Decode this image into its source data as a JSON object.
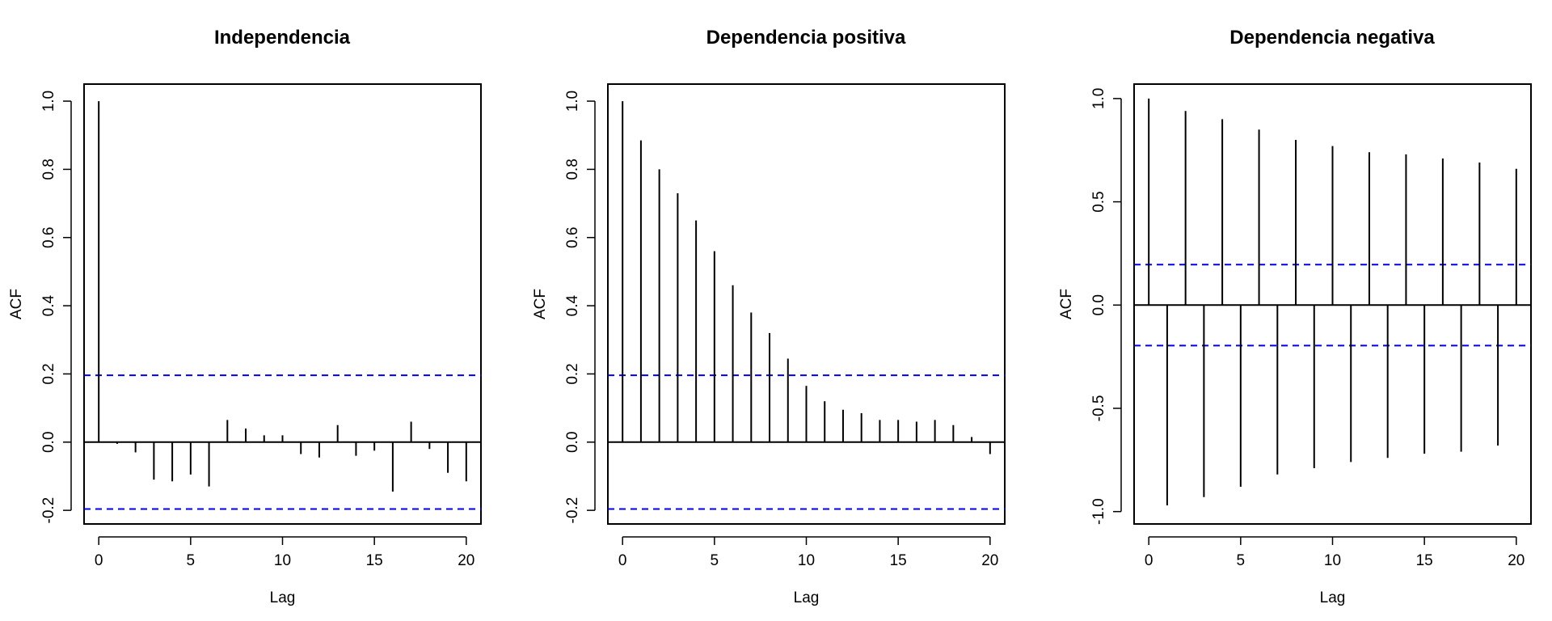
{
  "chart_data": [
    {
      "type": "bar",
      "title": "Independencia",
      "xlabel": "Lag",
      "ylabel": "ACF",
      "xlim": [
        -0.8,
        20.8
      ],
      "ylim": [
        -0.24,
        1.05
      ],
      "xticks": [
        0,
        5,
        10,
        15,
        20
      ],
      "xtick_labels": [
        "0",
        "5",
        "10",
        "15",
        "20"
      ],
      "yticks": [
        -0.2,
        0.0,
        0.2,
        0.4,
        0.6,
        0.8,
        1.0
      ],
      "ytick_labels": [
        "-0.2",
        "0.0",
        "0.2",
        "0.4",
        "0.6",
        "0.8",
        "1.0"
      ],
      "confidence_bound": 0.196,
      "confidence_color": "#0000ee",
      "x": [
        0,
        1,
        2,
        3,
        4,
        5,
        6,
        7,
        8,
        9,
        10,
        11,
        12,
        13,
        14,
        15,
        16,
        17,
        18,
        19,
        20
      ],
      "values": [
        1.0,
        -0.005,
        -0.03,
        -0.11,
        -0.115,
        -0.095,
        -0.13,
        0.065,
        0.04,
        0.02,
        0.02,
        -0.035,
        -0.045,
        0.05,
        -0.04,
        -0.025,
        -0.145,
        0.06,
        -0.02,
        -0.09,
        -0.115
      ]
    },
    {
      "type": "bar",
      "title": "Dependencia positiva",
      "xlabel": "Lag",
      "ylabel": "ACF",
      "xlim": [
        -0.8,
        20.8
      ],
      "ylim": [
        -0.24,
        1.05
      ],
      "xticks": [
        0,
        5,
        10,
        15,
        20
      ],
      "xtick_labels": [
        "0",
        "5",
        "10",
        "15",
        "20"
      ],
      "yticks": [
        -0.2,
        0.0,
        0.2,
        0.4,
        0.6,
        0.8,
        1.0
      ],
      "ytick_labels": [
        "-0.2",
        "0.0",
        "0.2",
        "0.4",
        "0.6",
        "0.8",
        "1.0"
      ],
      "confidence_bound": 0.196,
      "confidence_color": "#0000ee",
      "x": [
        0,
        1,
        2,
        3,
        4,
        5,
        6,
        7,
        8,
        9,
        10,
        11,
        12,
        13,
        14,
        15,
        16,
        17,
        18,
        19,
        20
      ],
      "values": [
        1.0,
        0.885,
        0.8,
        0.73,
        0.65,
        0.56,
        0.46,
        0.38,
        0.32,
        0.245,
        0.165,
        0.12,
        0.095,
        0.085,
        0.065,
        0.065,
        0.06,
        0.065,
        0.05,
        0.015,
        -0.035
      ]
    },
    {
      "type": "bar",
      "title": "Dependencia negativa",
      "xlabel": "Lag",
      "ylabel": "ACF",
      "xlim": [
        -0.8,
        20.8
      ],
      "ylim": [
        -1.06,
        1.07
      ],
      "xticks": [
        0,
        5,
        10,
        15,
        20
      ],
      "xtick_labels": [
        "0",
        "5",
        "10",
        "15",
        "20"
      ],
      "yticks": [
        -1.0,
        -0.5,
        0.0,
        0.5,
        1.0
      ],
      "ytick_labels": [
        "-1.0",
        "-0.5",
        "0.0",
        "0.5",
        "1.0"
      ],
      "confidence_bound": 0.196,
      "confidence_color": "#0000ee",
      "x": [
        0,
        1,
        2,
        3,
        4,
        5,
        6,
        7,
        8,
        9,
        10,
        11,
        12,
        13,
        14,
        15,
        16,
        17,
        18,
        19,
        20
      ],
      "values": [
        1.0,
        -0.97,
        0.94,
        -0.93,
        0.9,
        -0.88,
        0.85,
        -0.82,
        0.8,
        -0.79,
        0.77,
        -0.76,
        0.74,
        -0.74,
        0.73,
        -0.72,
        0.71,
        -0.71,
        0.69,
        -0.68,
        0.66
      ]
    }
  ]
}
